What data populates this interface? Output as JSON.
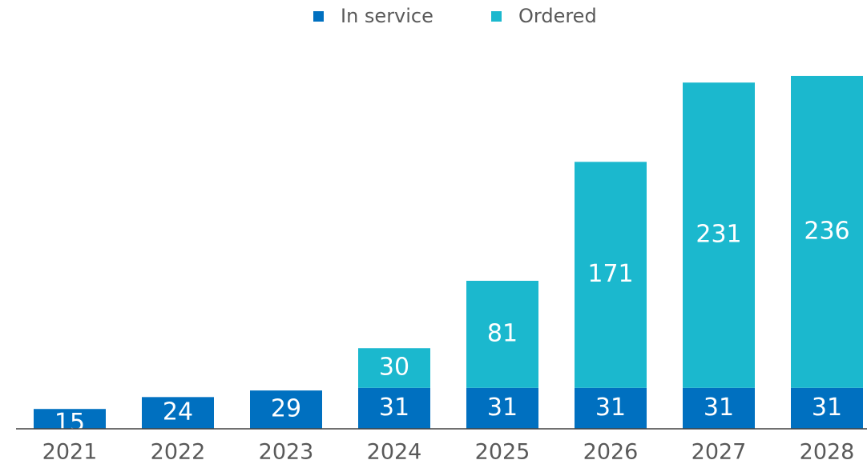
{
  "chart_data": {
    "type": "stacked_bar",
    "categories": [
      "2021",
      "2022",
      "2023",
      "2024",
      "2025",
      "2026",
      "2027",
      "2028"
    ],
    "series": [
      {
        "name": "In service",
        "color": "#0070c0",
        "values": [
          15,
          24,
          29,
          31,
          31,
          31,
          31,
          31
        ]
      },
      {
        "name": "Ordered",
        "color": "#1bb8ce",
        "values": [
          null,
          null,
          null,
          30,
          81,
          171,
          231,
          236
        ]
      }
    ],
    "ylim": [
      0,
      270
    ],
    "legend": "top"
  }
}
